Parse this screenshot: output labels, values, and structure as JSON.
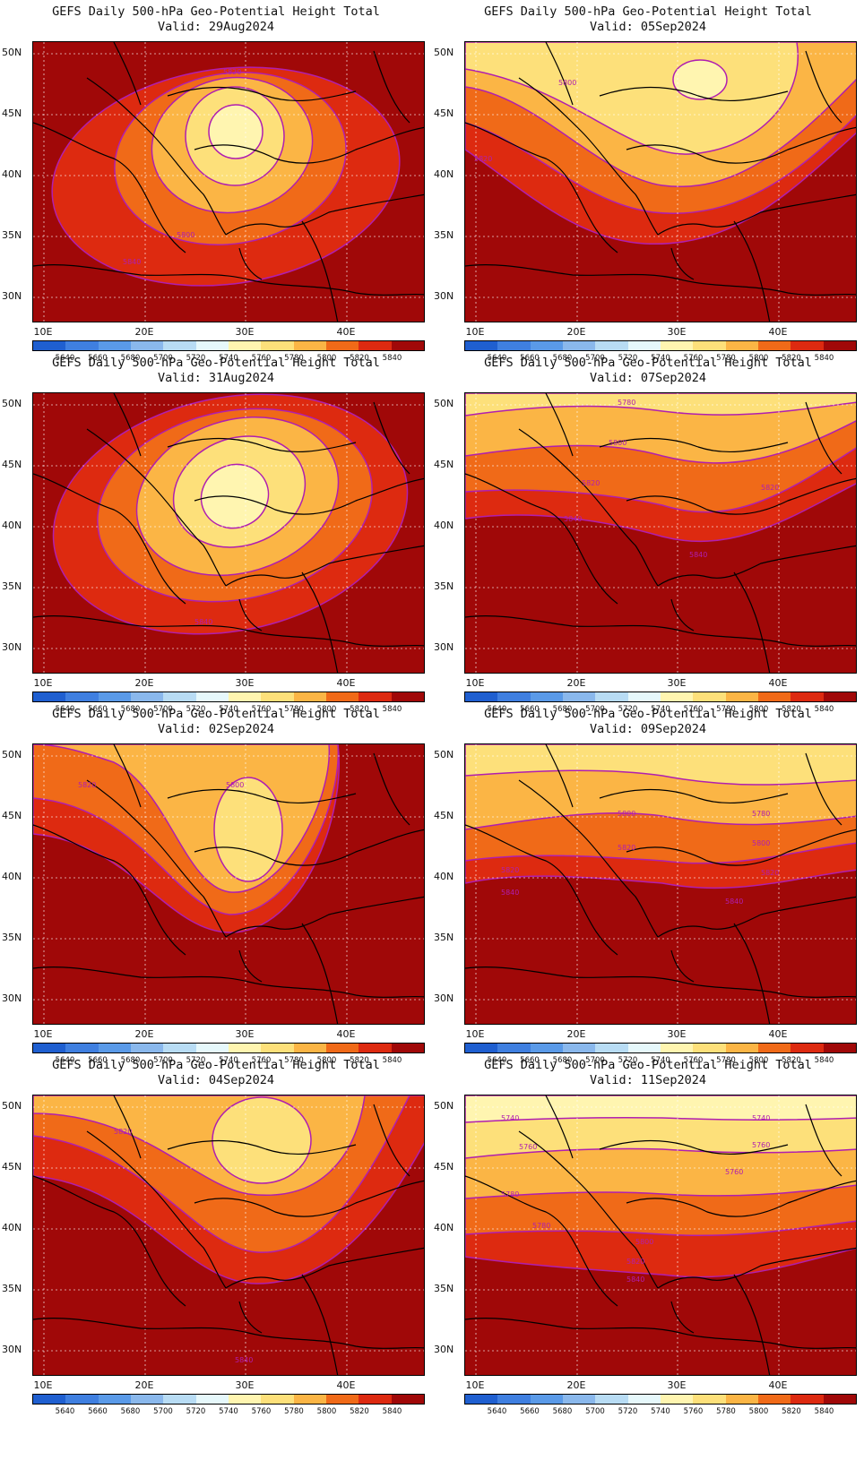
{
  "common_title": "GEFS Daily 500-hPa Geo-Potential Height Total",
  "valid_prefix": "Valid: ",
  "y_ticks": [
    "50N",
    "45N",
    "40N",
    "35N",
    "30N"
  ],
  "x_ticks": [
    "10E",
    "20E",
    "30E",
    "40E"
  ],
  "colorbar": {
    "labels": [
      "5640",
      "5660",
      "5680",
      "5700",
      "5720",
      "5740",
      "5760",
      "5780",
      "5800",
      "5820",
      "5840"
    ],
    "colors": [
      "#1f5fd0",
      "#3f7fe0",
      "#5a9ae8",
      "#8ab8ec",
      "#b8dcf4",
      "#e6f8fb",
      "#fff5b0",
      "#fde07a",
      "#fbb545",
      "#f06a18",
      "#dd2a10",
      "#a00808"
    ]
  },
  "panels": [
    {
      "valid": "29Aug2024",
      "contour_labels": [
        "5820",
        "5800",
        "5840"
      ]
    },
    {
      "valid": "05Sep2024",
      "contour_labels": [
        "5800",
        "5820"
      ]
    },
    {
      "valid": "31Aug2024",
      "contour_labels": [
        "5840"
      ]
    },
    {
      "valid": "07Sep2024",
      "contour_labels": [
        "5780",
        "5800",
        "5820",
        "5820",
        "5840",
        "5840"
      ]
    },
    {
      "valid": "02Sep2024",
      "contour_labels": [
        "5800",
        "5820"
      ]
    },
    {
      "valid": "09Sep2024",
      "contour_labels": [
        "5800",
        "5780",
        "5800",
        "5820",
        "5820",
        "5820",
        "5840",
        "5840"
      ]
    },
    {
      "valid": "04Sep2024",
      "contour_labels": [
        "5820",
        "5840"
      ]
    },
    {
      "valid": "11Sep2024",
      "contour_labels": [
        "5740",
        "5740",
        "5760",
        "5760",
        "5760",
        "5780",
        "5780",
        "5800",
        "5820",
        "5840"
      ]
    }
  ],
  "icons": {
    "map": "geopotential-height-map"
  }
}
